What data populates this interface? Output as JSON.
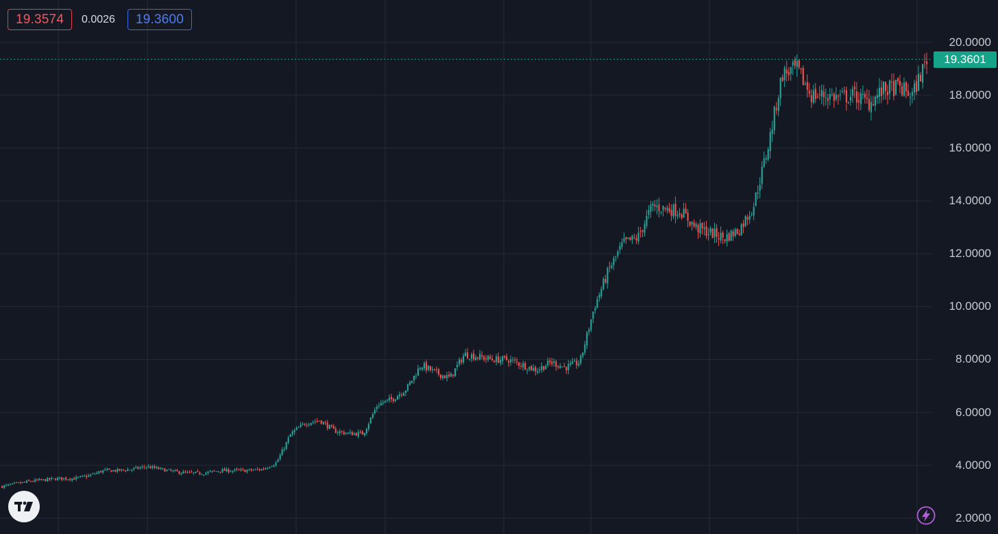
{
  "header": {
    "bid": "19.3574",
    "spread": "0.0026",
    "ask": "19.3600"
  },
  "last_price_label": "19.3601",
  "icons": {
    "logo": "tradingview-logo-icon",
    "bottom_right": "lightning-bolt-icon"
  },
  "colors": {
    "background": "#141823",
    "grid": "#242a36",
    "up": "#26a69a",
    "down": "#ef5350",
    "last_price_line": "#15a38a",
    "bid": "#ef5a63",
    "ask": "#4f7df2"
  },
  "chart_data": {
    "type": "candlestick",
    "y_axis": {
      "ticks": [
        "20.0000",
        "18.0000",
        "16.0000",
        "14.0000",
        "12.0000",
        "10.0000",
        "8.0000",
        "6.0000",
        "4.0000",
        "2.0000"
      ],
      "tick_values": [
        20,
        18,
        16,
        14,
        12,
        10,
        8,
        6,
        4,
        2
      ],
      "range": [
        1.4,
        21.6
      ]
    },
    "grid": true,
    "last_price": 19.3601,
    "approx_closes": [
      3.2,
      3.3,
      3.4,
      3.45,
      3.5,
      3.5,
      3.6,
      3.8,
      3.8,
      3.85,
      3.95,
      3.85,
      3.75,
      3.7,
      3.7,
      3.8,
      3.8,
      3.8,
      3.85,
      4.1,
      5.2,
      5.6,
      5.7,
      5.3,
      5.2,
      5.2,
      6.3,
      6.5,
      6.9,
      7.8,
      7.5,
      7.3,
      8.2,
      8.1,
      8.0,
      8.0,
      7.8,
      7.6,
      7.9,
      7.7,
      7.9,
      10.0,
      11.4,
      12.4,
      12.6,
      13.8,
      13.7,
      13.6,
      13.0,
      12.8,
      12.6,
      12.9,
      13.8,
      16.0,
      18.8,
      19.0,
      18.0,
      18.0,
      17.9,
      18.0,
      17.7,
      18.2,
      18.3,
      18.0,
      19.36
    ]
  }
}
